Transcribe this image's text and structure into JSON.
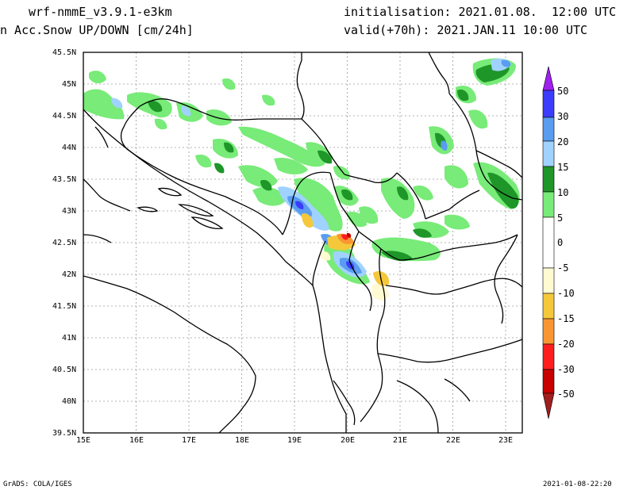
{
  "header": {
    "model": "wrf-nmmE_v3.9.1-e3km",
    "variable": "n Acc.Snow UP/DOWN [cm/24h]",
    "init": "initialisation: 2021.01.08.  12:00 UTC",
    "valid": "valid(+70h): 2021.JAN.11 10:00 UTC"
  },
  "axes": {
    "lat_labels": [
      "45.5N",
      "45N",
      "44.5N",
      "44N",
      "43.5N",
      "43N",
      "42.5N",
      "42N",
      "41.5N",
      "41N",
      "40.5N",
      "40N",
      "39.5N"
    ],
    "lon_labels": [
      "15E",
      "16E",
      "17E",
      "18E",
      "19E",
      "20E",
      "21E",
      "22E",
      "23E"
    ]
  },
  "colorbar": {
    "labels": [
      "50",
      "30",
      "20",
      "15",
      "10",
      "5",
      "0",
      "-5",
      "-10",
      "-15",
      "-20",
      "-30",
      "-50"
    ],
    "colors": {
      "top_arrow": "#a020f0",
      "c30_50": "#3c3cff",
      "c20_30": "#5a9cf0",
      "c15_20": "#a0d2ff",
      "c10_15": "#1e9628",
      "c5_10": "#78eb78",
      "neutral": "#ffffff",
      "m5": "#fffad2",
      "m10": "#f5c83c",
      "m15": "#fa9632",
      "m20": "#ff1e1e",
      "m30": "#c80000",
      "bottom_arrow": "#a01e1e"
    }
  },
  "footer": {
    "left": "GrADS: COLA/IGES",
    "right": "2021-01-08-22:20"
  }
}
